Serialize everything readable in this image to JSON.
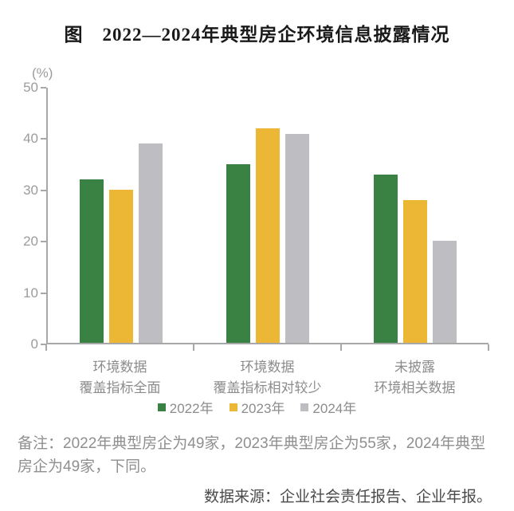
{
  "title": "图　2022—2024年典型房企环境信息披露情况",
  "chart_data": {
    "type": "bar",
    "title": "图　2022—2024年典型房企环境信息披露情况",
    "unit_label": "(%)",
    "categories": [
      [
        "环境数据",
        "覆盖指标全面"
      ],
      [
        "环境数据",
        "覆盖指标相对较少"
      ],
      [
        "未披露",
        "环境相关数据"
      ]
    ],
    "series": [
      {
        "name": "2022年",
        "color": "#3a8144",
        "values": [
          32,
          35,
          33
        ]
      },
      {
        "name": "2023年",
        "color": "#ecb734",
        "values": [
          30,
          42,
          28
        ]
      },
      {
        "name": "2024年",
        "color": "#bebec2",
        "values": [
          39,
          41,
          20
        ]
      }
    ],
    "ylim": [
      0,
      50
    ],
    "yticks": [
      0,
      10,
      20,
      30,
      40,
      50
    ],
    "grid": false,
    "legend_position": "bottom",
    "axis_color": "#a8a8a8"
  },
  "notes": {
    "remark": "备注：2022年典型房企为49家，2023年典型房企为55家，2024年典型房企为49家，下同。",
    "source": "数据来源：企业社会责任报告、企业年报。"
  }
}
